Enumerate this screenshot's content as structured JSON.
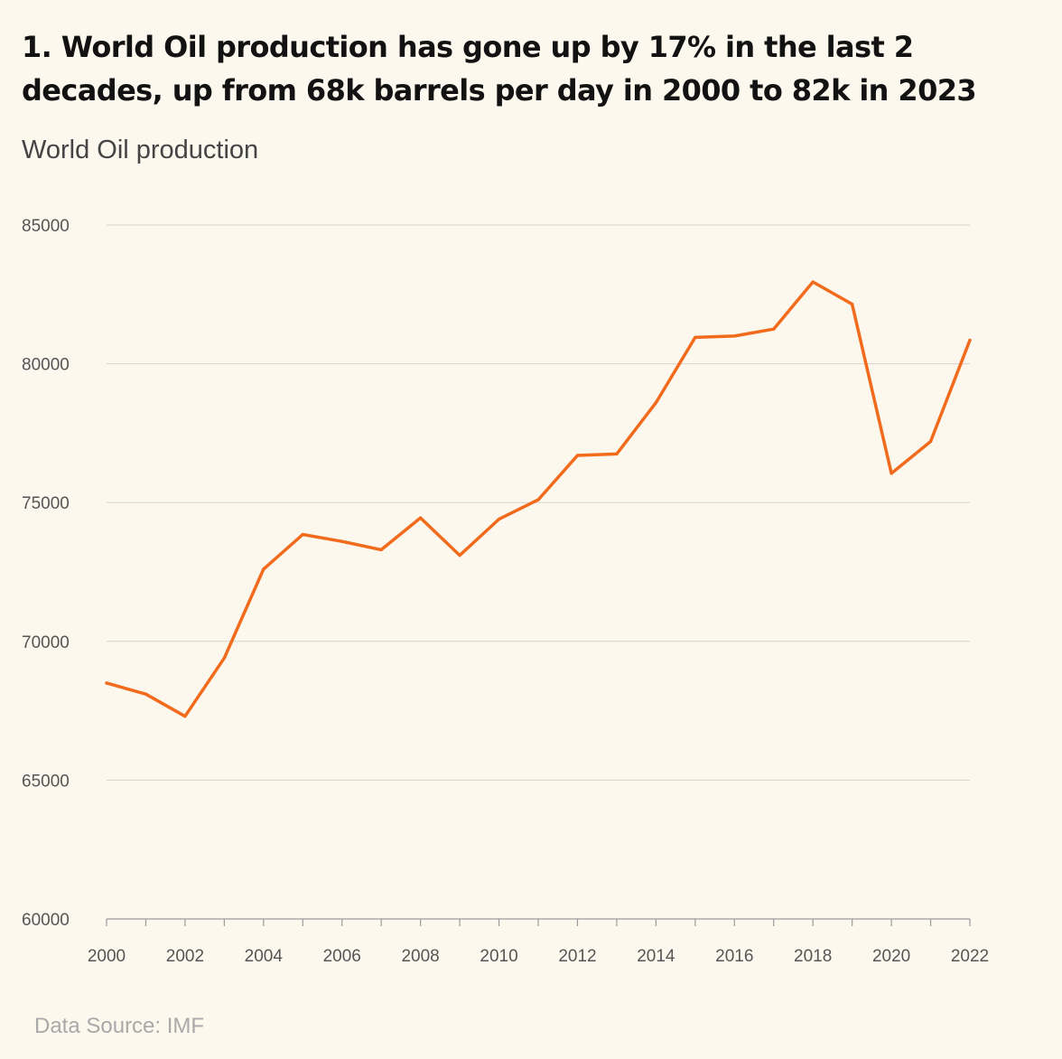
{
  "chart_data": {
    "type": "line",
    "title": "1. World Oil production has gone up by 17% in the last 2 decades, up from 68k barrels per day in 2000 to 82k in 2023",
    "subtitle": "World Oil production",
    "source": "Data Source: IMF",
    "xlabel": "",
    "ylabel": "",
    "x": [
      2000,
      2001,
      2002,
      2003,
      2004,
      2005,
      2006,
      2007,
      2008,
      2009,
      2010,
      2011,
      2012,
      2013,
      2014,
      2015,
      2016,
      2017,
      2018,
      2019,
      2020,
      2021,
      2022
    ],
    "series": [
      {
        "values": [
          68500,
          68100,
          67300,
          69400,
          72600,
          73850,
          73600,
          73300,
          74450,
          73100,
          74400,
          75100,
          76700,
          76750,
          78600,
          80950,
          81000,
          81250,
          82950,
          82150,
          76050,
          77200,
          80850
        ],
        "color": "#f26b1d"
      }
    ],
    "xlim": [
      2000,
      2022
    ],
    "ylim": [
      60000,
      85000
    ],
    "yticks": [
      "60000",
      "65000",
      "70000",
      "75000",
      "80000",
      "85000"
    ],
    "xticks": [
      "2000",
      "2002",
      "2004",
      "2006",
      "2008",
      "2010",
      "2012",
      "2014",
      "2016",
      "2018",
      "2020",
      "2022"
    ],
    "grid": true,
    "legend": "none"
  }
}
